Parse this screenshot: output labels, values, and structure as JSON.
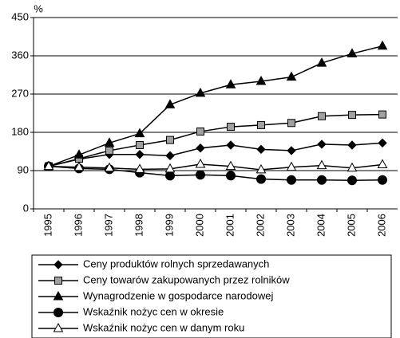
{
  "chart_data": {
    "type": "line",
    "y_label": "%",
    "categories": [
      "1995",
      "1996",
      "1997",
      "1998",
      "1999",
      "2000",
      "2001",
      "2002",
      "2003",
      "2004",
      "2005",
      "2006"
    ],
    "ylim": [
      0,
      450
    ],
    "yticks": [
      0,
      90,
      180,
      270,
      360,
      450
    ],
    "grid": true,
    "series": [
      {
        "name": "Ceny produktów rolnych sprzedawanych",
        "color": "#000000",
        "marker": "diamond",
        "marker_fill": "#000000",
        "values": [
          100,
          117,
          128,
          128,
          125,
          143,
          150,
          140,
          137,
          152,
          150,
          155
        ]
      },
      {
        "name": "Ceny towarów zakupowanych przez rolników",
        "color": "#000000",
        "marker": "square",
        "marker_fill": "#a0a0a0",
        "values": [
          100,
          118,
          137,
          150,
          162,
          182,
          193,
          197,
          202,
          218,
          221,
          222
        ]
      },
      {
        "name": "Wynagrodzenie w gospodarce narodowej",
        "color": "#000000",
        "marker": "triangle",
        "marker_fill": "#000000",
        "values": [
          100,
          127,
          155,
          177,
          245,
          272,
          292,
          300,
          310,
          343,
          365,
          383
        ]
      },
      {
        "name": "Wskaźnik nożyc cen w okresie",
        "color": "#000000",
        "marker": "circle",
        "marker_fill": "#000000",
        "values": [
          100,
          95,
          93,
          85,
          78,
          80,
          78,
          70,
          68,
          68,
          67,
          68
        ]
      },
      {
        "name": "Wskaźnik nożyc cen w danym roku",
        "color": "#000000",
        "marker": "triangle",
        "marker_fill": "#ffffff",
        "values": [
          100,
          98,
          96,
          93,
          94,
          105,
          100,
          92,
          98,
          102,
          96,
          104
        ]
      }
    ]
  }
}
